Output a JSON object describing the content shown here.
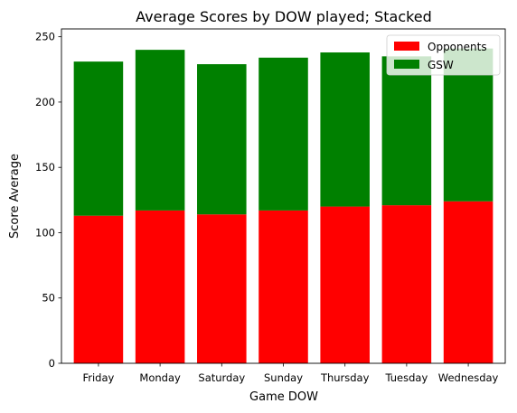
{
  "chart_data": {
    "type": "bar",
    "stacked": true,
    "title": "Average Scores by DOW played; Stacked",
    "xlabel": "Game DOW",
    "ylabel": "Score Average",
    "categories": [
      "Friday",
      "Monday",
      "Saturday",
      "Sunday",
      "Thursday",
      "Tuesday",
      "Wednesday"
    ],
    "series": [
      {
        "name": "Opponents",
        "color": "#ff0000",
        "values": [
          113,
          117,
          114,
          117,
          120,
          121,
          124
        ]
      },
      {
        "name": "GSW",
        "color": "#008000",
        "values": [
          118,
          123,
          115,
          117,
          118,
          114,
          117
        ]
      }
    ],
    "ylim": [
      0,
      256
    ],
    "yticks": [
      0,
      50,
      100,
      150,
      200,
      250
    ],
    "grid": false,
    "legend": "top-right"
  }
}
